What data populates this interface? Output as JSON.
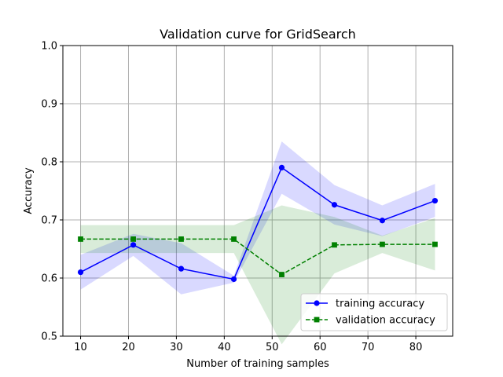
{
  "chart_data": {
    "type": "line",
    "title": "Validation curve for GridSearch",
    "xlabel": "Number of training samples",
    "ylabel": "Accuracy",
    "xlim": [
      6.3,
      87.7
    ],
    "ylim": [
      0.5,
      1.0
    ],
    "xticks": [
      10,
      20,
      30,
      40,
      50,
      60,
      70,
      80
    ],
    "yticks": [
      0.5,
      0.6,
      0.7,
      0.8,
      0.9,
      1.0
    ],
    "xtick_labels": [
      "10",
      "20",
      "30",
      "40",
      "50",
      "60",
      "70",
      "80"
    ],
    "ytick_labels": [
      "0.5",
      "0.6",
      "0.7",
      "0.8",
      "0.9",
      "1.0"
    ],
    "grid": true,
    "legend_position": "lower right",
    "x": [
      10,
      21,
      31,
      42,
      52,
      63,
      73,
      84
    ],
    "series": [
      {
        "name": "training accuracy",
        "color": "#0000ff",
        "fill_color": "#0000ff",
        "marker": "circle",
        "linestyle": "solid",
        "values": [
          0.61,
          0.657,
          0.616,
          0.598,
          0.79,
          0.726,
          0.699,
          0.733
        ],
        "lower": [
          0.58,
          0.638,
          0.572,
          0.592,
          0.745,
          0.692,
          0.672,
          0.705
        ],
        "upper": [
          0.64,
          0.676,
          0.66,
          0.604,
          0.835,
          0.76,
          0.725,
          0.762
        ]
      },
      {
        "name": "validation accuracy",
        "color": "#008000",
        "fill_color": "#008000",
        "marker": "square",
        "linestyle": "dashed",
        "values": [
          0.667,
          0.667,
          0.667,
          0.667,
          0.606,
          0.657,
          0.658,
          0.658
        ],
        "lower": [
          0.643,
          0.643,
          0.643,
          0.643,
          0.486,
          0.608,
          0.643,
          0.613
        ],
        "upper": [
          0.691,
          0.691,
          0.691,
          0.691,
          0.725,
          0.705,
          0.673,
          0.703
        ]
      }
    ]
  }
}
